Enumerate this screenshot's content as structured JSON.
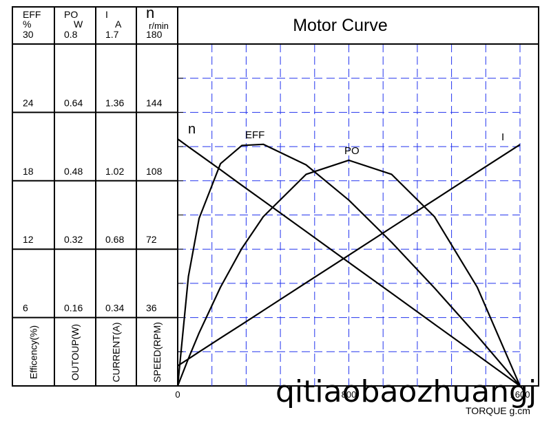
{
  "chart_data": {
    "type": "line",
    "title": "Motor Curve",
    "x": [
      0,
      50,
      100,
      200,
      300,
      400,
      600,
      800,
      1000,
      1200,
      1400,
      1600
    ],
    "xlim": [
      0,
      1600
    ],
    "xticks": [
      0,
      800,
      1600
    ],
    "xlabel": "TORQUE g.cm",
    "series": [
      {
        "name": "EFF",
        "unit": "%",
        "label": "Efficency(%)",
        "color": "#000000",
        "ylim": [
          0,
          30
        ],
        "yticks": [
          6,
          12,
          18,
          24,
          30
        ],
        "values": [
          0,
          9.6,
          14.7,
          19.5,
          21.1,
          21.2,
          19.4,
          16.3,
          12.6,
          8.6,
          4.4,
          0
        ]
      },
      {
        "name": "PO",
        "unit": "W",
        "label": "OUTOUP(W)",
        "color": "#000000",
        "ylim": [
          0,
          0.8
        ],
        "yticks": [
          0.16,
          0.32,
          0.48,
          0.64,
          0.8
        ],
        "values": [
          0,
          0.064,
          0.124,
          0.231,
          0.322,
          0.396,
          0.495,
          0.528,
          0.495,
          0.396,
          0.231,
          0
        ]
      },
      {
        "name": "I",
        "unit": "A",
        "label": "CURRENT(A)",
        "color": "#000000",
        "ylim": [
          0,
          1.7
        ],
        "yticks": [
          0.34,
          0.68,
          1.02,
          1.36,
          1.7
        ],
        "values": [
          0.1,
          0.134,
          0.169,
          0.238,
          0.306,
          0.375,
          0.513,
          0.65,
          0.788,
          0.925,
          1.063,
          1.2
        ]
      },
      {
        "name": "n",
        "unit": "r/min",
        "label": "SPEED(RPM)",
        "color": "#000000",
        "ylim": [
          0,
          180
        ],
        "yticks": [
          36,
          72,
          108,
          144,
          180
        ],
        "values": [
          130,
          125.9,
          121.9,
          113.8,
          105.6,
          97.5,
          81.3,
          65,
          48.8,
          32.5,
          16.3,
          0
        ]
      }
    ],
    "grid": true,
    "watermark": "qitiaobaozhuangj"
  }
}
